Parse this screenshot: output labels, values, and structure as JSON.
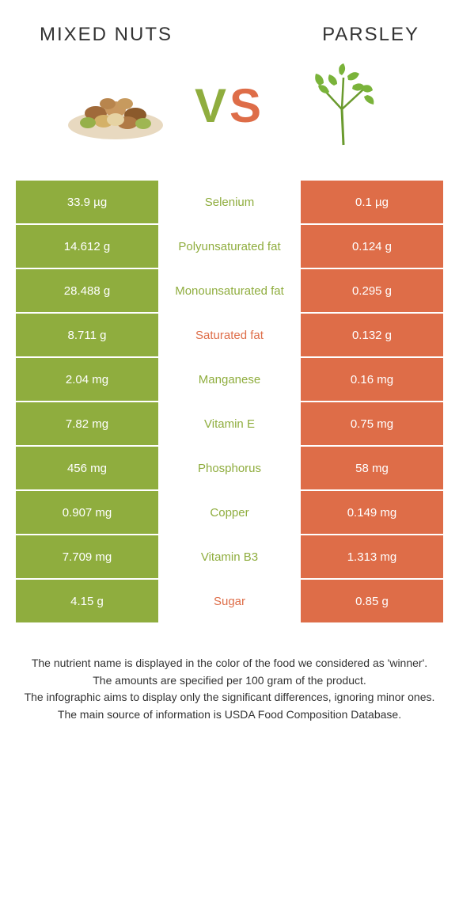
{
  "header": {
    "left_title": "Mixed nuts",
    "right_title": "Parsley"
  },
  "vs": {
    "v": "V",
    "s": "S"
  },
  "colors": {
    "left_bar": "#8fad3e",
    "right_bar": "#de6d48",
    "mid_bg": "#ffffff",
    "green_text": "#8fad3e",
    "orange_text": "#de6d48",
    "vs_v": "#8fad3e",
    "vs_s": "#de6d48"
  },
  "rows": [
    {
      "left": "33.9 µg",
      "name": "Selenium",
      "right": "0.1 µg",
      "winner": "left"
    },
    {
      "left": "14.612 g",
      "name": "Polyunsaturated fat",
      "right": "0.124 g",
      "winner": "left"
    },
    {
      "left": "28.488 g",
      "name": "Monounsaturated fat",
      "right": "0.295 g",
      "winner": "left"
    },
    {
      "left": "8.711 g",
      "name": "Saturated fat",
      "right": "0.132 g",
      "winner": "right"
    },
    {
      "left": "2.04 mg",
      "name": "Manganese",
      "right": "0.16 mg",
      "winner": "left"
    },
    {
      "left": "7.82 mg",
      "name": "Vitamin E",
      "right": "0.75 mg",
      "winner": "left"
    },
    {
      "left": "456 mg",
      "name": "Phosphorus",
      "right": "58 mg",
      "winner": "left"
    },
    {
      "left": "0.907 mg",
      "name": "Copper",
      "right": "0.149 mg",
      "winner": "left"
    },
    {
      "left": "7.709 mg",
      "name": "Vitamin B3",
      "right": "1.313 mg",
      "winner": "left"
    },
    {
      "left": "4.15 g",
      "name": "Sugar",
      "right": "0.85 g",
      "winner": "right"
    }
  ],
  "footnotes": [
    "The nutrient name is displayed in the color of the food we considered as 'winner'.",
    "The amounts are specified per 100 gram of the product.",
    "The infographic aims to display only the significant differences, ignoring minor ones.",
    "The main source of information is USDA Food Composition Database."
  ]
}
